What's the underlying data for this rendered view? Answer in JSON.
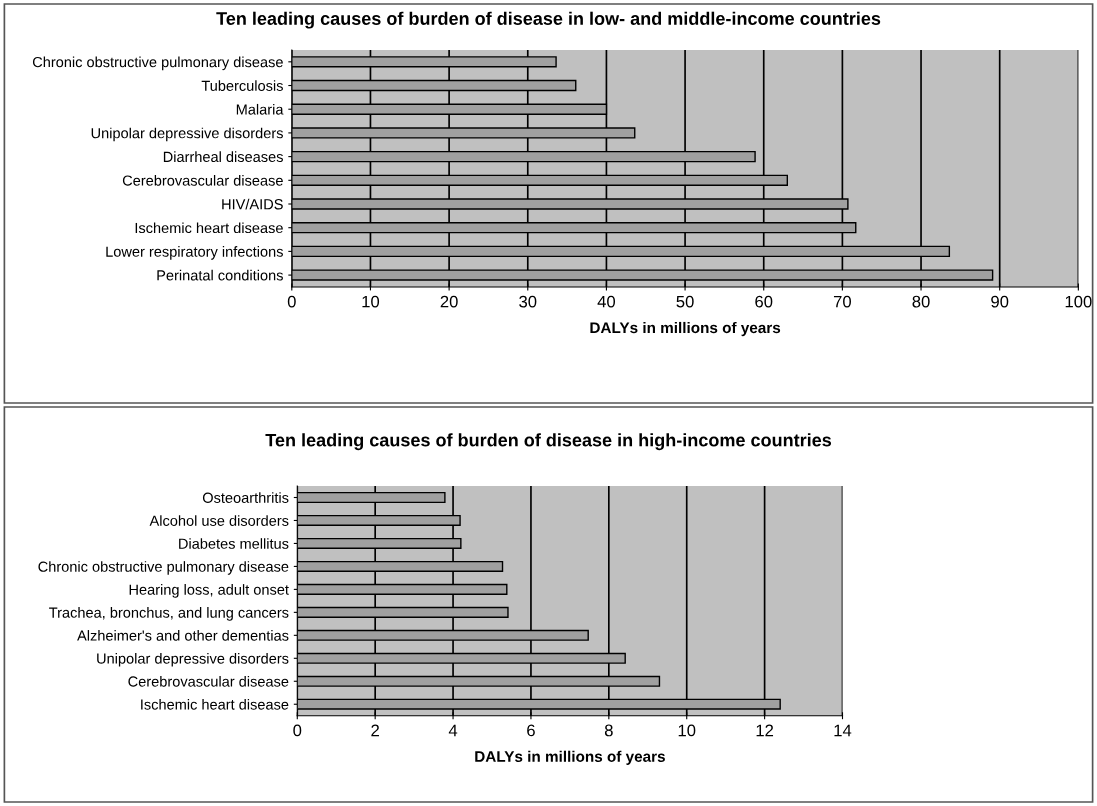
{
  "chart_data": [
    {
      "type": "bar",
      "orientation": "horizontal",
      "title": "Ten leading causes of burden of disease in low- and middle-income countries",
      "xlabel": "DALYs in millions of years",
      "categories": [
        "Chronic obstructive pulmonary disease",
        "Tuberculosis",
        "Malaria",
        "Unipolar depressive disorders",
        "Diarrheal diseases",
        "Cerebrovascular disease",
        "HIV/AIDS",
        "Ischemic heart disease",
        "Lower respiratory infections",
        "Perinatal conditions"
      ],
      "values": [
        33.6,
        36.1,
        40,
        43.6,
        58.9,
        63.0,
        70.7,
        71.7,
        83.6,
        89.1
      ],
      "color": "#a0a0a0",
      "xlim": [
        0,
        100
      ],
      "xticks": [
        0,
        10,
        20,
        30,
        40,
        50,
        60,
        70,
        80,
        90,
        100
      ],
      "grid": "x",
      "legend": false
    },
    {
      "type": "bar",
      "orientation": "horizontal",
      "title": "Ten leading causes of burden of disease in high-income countries",
      "xlabel": "DALYs in millions of years",
      "categories": [
        "Osteoarthritis",
        "Alcohol use disorders",
        "Diabetes mellitus",
        "Chronic obstructive pulmonary disease",
        "Hearing loss, adult onset",
        "Trachea, bronchus, and lung cancers",
        "Alzheimer's and other dementias",
        "Unipolar depressive disorders",
        "Cerebrovascular disease",
        "Ischemic heart disease"
      ],
      "values": [
        3.79,
        4.18,
        4.2,
        5.27,
        5.38,
        5.41,
        7.47,
        8.42,
        9.3,
        12.4
      ],
      "color": "#a0a0a0",
      "xlim": [
        0,
        14
      ],
      "xticks": [
        0,
        2,
        4,
        6,
        8,
        10,
        12,
        14
      ],
      "grid": "x",
      "legend": false
    }
  ]
}
